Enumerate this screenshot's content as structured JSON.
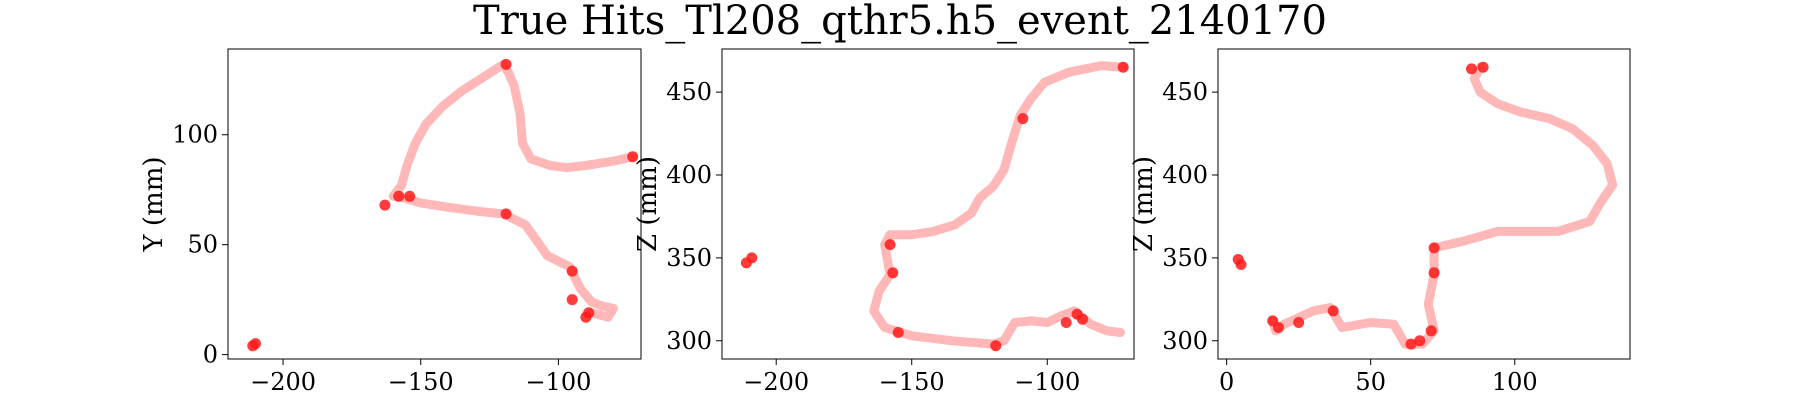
{
  "figure": {
    "title": "True Hits_Tl208_qthr5.h5_event_2140170"
  },
  "chart_data": [
    {
      "type": "scatter",
      "xlabel": "",
      "ylabel": "Y (mm)",
      "xlim": [
        -220,
        -70
      ],
      "ylim": [
        -2,
        139
      ],
      "xticks": [
        -200,
        -150,
        -100
      ],
      "xtick_labels": [
        "−200",
        "−150",
        "−100"
      ],
      "yticks": [
        0,
        50,
        100
      ],
      "ytick_labels": [
        "0",
        "50",
        "100"
      ],
      "color": "#ff0000",
      "track": [
        [
          -73,
          90
        ],
        [
          -80,
          88
        ],
        [
          -90,
          86
        ],
        [
          -97,
          85
        ],
        [
          -103,
          86
        ],
        [
          -110,
          89
        ],
        [
          -113,
          96
        ],
        [
          -114,
          110
        ],
        [
          -116,
          122
        ],
        [
          -118,
          128
        ],
        [
          -120,
          132
        ],
        [
          -125,
          128
        ],
        [
          -135,
          120
        ],
        [
          -142,
          113
        ],
        [
          -148,
          105
        ],
        [
          -152,
          96
        ],
        [
          -155,
          86
        ],
        [
          -157,
          77
        ],
        [
          -160,
          72
        ],
        [
          -158,
          72
        ],
        [
          -150,
          69
        ],
        [
          -140,
          67
        ],
        [
          -128,
          65
        ],
        [
          -120,
          64
        ],
        [
          -112,
          59
        ],
        [
          -108,
          52
        ],
        [
          -104,
          45
        ],
        [
          -96,
          40
        ],
        [
          -92,
          30
        ],
        [
          -88,
          24
        ],
        [
          -84,
          22
        ],
        [
          -80,
          21
        ],
        [
          -82,
          17
        ],
        [
          -88,
          19
        ]
      ],
      "hits": [
        [
          -73,
          90
        ],
        [
          -119,
          132
        ],
        [
          -158,
          72
        ],
        [
          -154,
          72
        ],
        [
          -163,
          68
        ],
        [
          -119,
          64
        ],
        [
          -95,
          38
        ],
        [
          -95,
          25
        ],
        [
          -90,
          17
        ],
        [
          -89,
          19
        ],
        [
          -210,
          5
        ],
        [
          -211,
          4
        ]
      ]
    },
    {
      "type": "scatter",
      "xlabel": "",
      "ylabel": "Z (mm)",
      "xlim": [
        -220,
        -68
      ],
      "ylim": [
        289,
        476
      ],
      "xticks": [
        -200,
        -150,
        -100
      ],
      "xtick_labels": [
        "−200",
        "−150",
        "−100"
      ],
      "yticks": [
        300,
        350,
        400,
        450
      ],
      "ytick_labels": [
        "300",
        "350",
        "400",
        "450"
      ],
      "color": "#ff0000",
      "track": [
        [
          -72,
          465
        ],
        [
          -80,
          466
        ],
        [
          -92,
          462
        ],
        [
          -101,
          456
        ],
        [
          -106,
          446
        ],
        [
          -110,
          436
        ],
        [
          -113,
          420
        ],
        [
          -116,
          403
        ],
        [
          -120,
          393
        ],
        [
          -125,
          386
        ],
        [
          -128,
          377
        ],
        [
          -134,
          370
        ],
        [
          -142,
          366
        ],
        [
          -150,
          364
        ],
        [
          -158,
          364
        ],
        [
          -160,
          358
        ],
        [
          -158,
          340
        ],
        [
          -162,
          330
        ],
        [
          -164,
          318
        ],
        [
          -160,
          308
        ],
        [
          -150,
          303
        ],
        [
          -135,
          300
        ],
        [
          -120,
          298
        ],
        [
          -116,
          300
        ],
        [
          -112,
          311
        ],
        [
          -106,
          312
        ],
        [
          -100,
          311
        ],
        [
          -95,
          315
        ],
        [
          -90,
          318
        ],
        [
          -84,
          310
        ],
        [
          -78,
          306
        ],
        [
          -73,
          305
        ]
      ],
      "hits": [
        [
          -72,
          465
        ],
        [
          -109,
          434
        ],
        [
          -158,
          358
        ],
        [
          -157,
          341
        ],
        [
          -155,
          305
        ],
        [
          -119,
          297
        ],
        [
          -93,
          311
        ],
        [
          -89,
          316
        ],
        [
          -87,
          313
        ],
        [
          -211,
          347
        ],
        [
          -209,
          350
        ]
      ]
    },
    {
      "type": "scatter",
      "xlabel": "",
      "ylabel": "Z (mm)",
      "xlim": [
        -3,
        140
      ],
      "ylim": [
        289,
        476
      ],
      "xticks": [
        0,
        50,
        100
      ],
      "xtick_labels": [
        "0",
        "50",
        "100"
      ],
      "yticks": [
        300,
        350,
        400,
        450
      ],
      "ytick_labels": [
        "300",
        "350",
        "400",
        "450"
      ],
      "color": "#ff0000",
      "track": [
        [
          88,
          465
        ],
        [
          86,
          458
        ],
        [
          88,
          450
        ],
        [
          94,
          443
        ],
        [
          102,
          438
        ],
        [
          112,
          434
        ],
        [
          120,
          428
        ],
        [
          127,
          418
        ],
        [
          132,
          407
        ],
        [
          134,
          394
        ],
        [
          130,
          384
        ],
        [
          126,
          372
        ],
        [
          115,
          366
        ],
        [
          104,
          366
        ],
        [
          94,
          366
        ],
        [
          82,
          360
        ],
        [
          72,
          356
        ],
        [
          72,
          340
        ],
        [
          70,
          322
        ],
        [
          72,
          306
        ],
        [
          68,
          298
        ],
        [
          62,
          298
        ],
        [
          58,
          310
        ],
        [
          50,
          311
        ],
        [
          40,
          308
        ],
        [
          36,
          320
        ],
        [
          30,
          318
        ],
        [
          25,
          314
        ],
        [
          20,
          310
        ],
        [
          17,
          306
        ],
        [
          16,
          312
        ]
      ],
      "hits": [
        [
          85,
          464
        ],
        [
          89,
          465
        ],
        [
          72,
          356
        ],
        [
          72,
          341
        ],
        [
          71,
          306
        ],
        [
          64,
          298
        ],
        [
          67,
          300
        ],
        [
          37,
          318
        ],
        [
          25,
          311
        ],
        [
          16,
          312
        ],
        [
          18,
          308
        ],
        [
          4,
          349
        ],
        [
          5,
          346
        ]
      ]
    }
  ]
}
